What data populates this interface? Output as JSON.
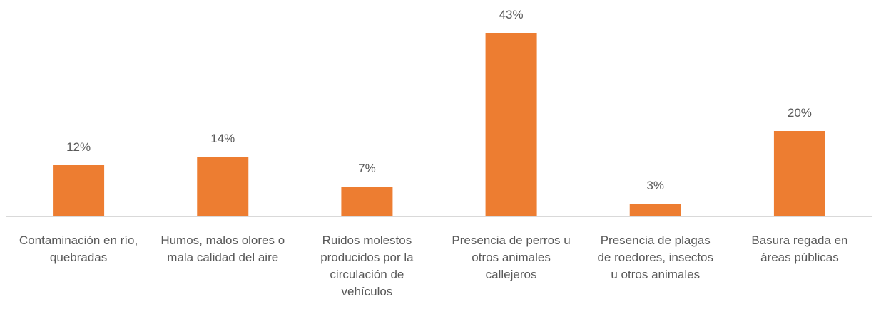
{
  "chart_data": {
    "type": "bar",
    "categories": [
      "Contaminación en río, quebradas",
      "Humos, malos olores o mala calidad del aire",
      "Ruidos molestos producidos por la circulación de vehículos",
      "Presencia de perros u otros animales callejeros",
      "Presencia de plagas de roedores, insectos u otros animales",
      "Basura regada en áreas públicas"
    ],
    "values": [
      12,
      14,
      7,
      43,
      3,
      20
    ],
    "value_labels": [
      "12%",
      "14%",
      "7%",
      "43%",
      "3%",
      "20%"
    ],
    "color": "#ed7d31"
  }
}
